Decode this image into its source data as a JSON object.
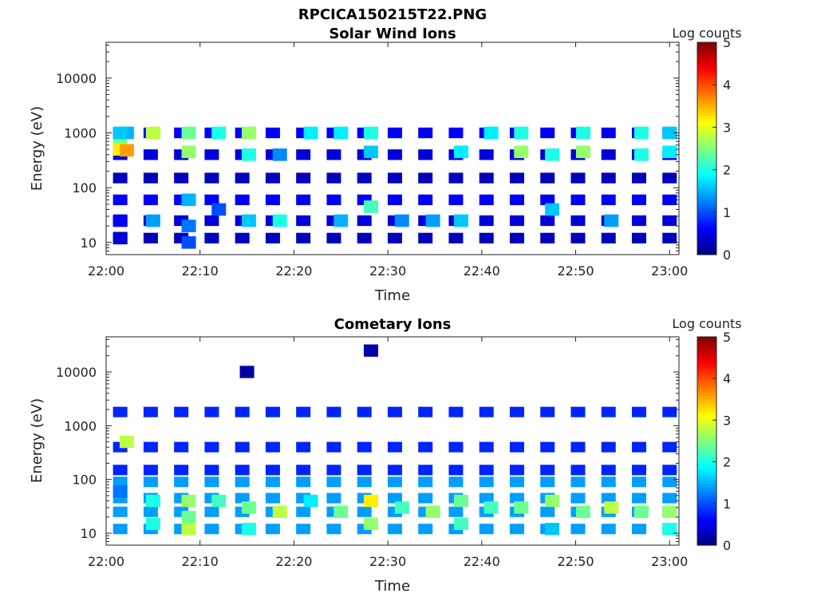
{
  "figure_title": "RPCICA150215T22.PNG",
  "chart_data": [
    {
      "type": "heatmap",
      "title": "Solar Wind Ions",
      "xlabel": "Time",
      "ylabel": "Energy (eV)",
      "yscale": "log",
      "xlim": [
        "22:00",
        "23:01"
      ],
      "ylim": [
        6,
        45000
      ],
      "x_ticks": [
        "22:00",
        "22:10",
        "22:20",
        "22:30",
        "22:40",
        "22:50",
        "23:00"
      ],
      "y_ticks": [
        "10",
        "100",
        "1000",
        "10000"
      ],
      "colorbar": {
        "label": "Log counts",
        "range": [
          0,
          5
        ],
        "ticks": [
          "0",
          "1",
          "2",
          "3",
          "4",
          "5"
        ],
        "colormap": "jet"
      },
      "cells": [
        {
          "t": 1.5,
          "E": 700,
          "v": 2.4
        },
        {
          "t": 1.5,
          "E": 500,
          "v": 3.2
        },
        {
          "t": 2.2,
          "E": 480,
          "v": 3.6
        },
        {
          "t": 2.2,
          "E": 1000,
          "v": 1.5
        },
        {
          "t": 1.5,
          "E": 1000,
          "v": 1.6
        },
        {
          "t": 1.5,
          "E": 25,
          "v": 0.6
        },
        {
          "t": 1.5,
          "E": 12,
          "v": 0.4
        },
        {
          "t": 5.0,
          "E": 1000,
          "v": 2.8
        },
        {
          "t": 5.0,
          "E": 25,
          "v": 1.4
        },
        {
          "t": 8.8,
          "E": 1000,
          "v": 2.4
        },
        {
          "t": 8.8,
          "E": 450,
          "v": 2.6
        },
        {
          "t": 8.8,
          "E": 60,
          "v": 1.5
        },
        {
          "t": 8.8,
          "E": 20,
          "v": 1.2
        },
        {
          "t": 8.8,
          "E": 10,
          "v": 1.0
        },
        {
          "t": 12.0,
          "E": 1000,
          "v": 2.0
        },
        {
          "t": 12.0,
          "E": 40,
          "v": 1.0
        },
        {
          "t": 15.2,
          "E": 1000,
          "v": 2.6
        },
        {
          "t": 15.2,
          "E": 400,
          "v": 2.0
        },
        {
          "t": 15.2,
          "E": 25,
          "v": 1.6
        },
        {
          "t": 18.5,
          "E": 25,
          "v": 2.0
        },
        {
          "t": 18.5,
          "E": 400,
          "v": 1.3
        },
        {
          "t": 21.8,
          "E": 1000,
          "v": 1.8
        },
        {
          "t": 25.0,
          "E": 1000,
          "v": 1.8
        },
        {
          "t": 25.0,
          "E": 25,
          "v": 1.5
        },
        {
          "t": 28.2,
          "E": 1000,
          "v": 2.0
        },
        {
          "t": 28.2,
          "E": 45,
          "v": 2.2
        },
        {
          "t": 28.2,
          "E": 450,
          "v": 1.6
        },
        {
          "t": 31.5,
          "E": 25,
          "v": 1.3
        },
        {
          "t": 34.8,
          "E": 25,
          "v": 1.4
        },
        {
          "t": 37.8,
          "E": 450,
          "v": 1.8
        },
        {
          "t": 37.8,
          "E": 25,
          "v": 1.6
        },
        {
          "t": 41.0,
          "E": 1000,
          "v": 1.8
        },
        {
          "t": 44.2,
          "E": 450,
          "v": 2.6
        },
        {
          "t": 44.2,
          "E": 1000,
          "v": 2.0
        },
        {
          "t": 47.5,
          "E": 400,
          "v": 2.0
        },
        {
          "t": 47.5,
          "E": 40,
          "v": 1.6
        },
        {
          "t": 50.8,
          "E": 450,
          "v": 2.6
        },
        {
          "t": 50.8,
          "E": 1000,
          "v": 2.0
        },
        {
          "t": 53.8,
          "E": 25,
          "v": 1.4
        },
        {
          "t": 57.0,
          "E": 1000,
          "v": 2.0
        },
        {
          "t": 57.0,
          "E": 400,
          "v": 2.0
        },
        {
          "t": 60.0,
          "E": 450,
          "v": 1.8
        },
        {
          "t": 60.0,
          "E": 1000,
          "v": 1.6
        }
      ]
    },
    {
      "type": "heatmap",
      "title": "Cometary Ions",
      "xlabel": "Time",
      "ylabel": "Energy (eV)",
      "yscale": "log",
      "xlim": [
        "22:00",
        "23:01"
      ],
      "ylim": [
        6,
        45000
      ],
      "x_ticks": [
        "22:00",
        "22:10",
        "22:20",
        "22:30",
        "22:40",
        "22:50",
        "23:00"
      ],
      "y_ticks": [
        "10",
        "100",
        "1000",
        "10000"
      ],
      "colorbar": {
        "label": "Log counts",
        "range": [
          0,
          5
        ],
        "ticks": [
          "0",
          "1",
          "2",
          "3",
          "4",
          "5"
        ],
        "colormap": "jet"
      },
      "cells": [
        {
          "t": 2.2,
          "E": 500,
          "v": 2.8
        },
        {
          "t": 1.5,
          "E": 60,
          "v": 1.2
        },
        {
          "t": 5.0,
          "E": 40,
          "v": 2.0
        },
        {
          "t": 5.0,
          "E": 15,
          "v": 2.0
        },
        {
          "t": 8.8,
          "E": 40,
          "v": 2.6
        },
        {
          "t": 8.8,
          "E": 20,
          "v": 2.4
        },
        {
          "t": 8.8,
          "E": 12,
          "v": 2.8
        },
        {
          "t": 12.0,
          "E": 40,
          "v": 2.2
        },
        {
          "t": 15.2,
          "E": 30,
          "v": 2.4
        },
        {
          "t": 15.2,
          "E": 12,
          "v": 2.0
        },
        {
          "t": 18.5,
          "E": 25,
          "v": 2.8
        },
        {
          "t": 21.8,
          "E": 40,
          "v": 1.8
        },
        {
          "t": 25.0,
          "E": 25,
          "v": 2.4
        },
        {
          "t": 28.2,
          "E": 40,
          "v": 3.2
        },
        {
          "t": 28.2,
          "E": 15,
          "v": 2.6
        },
        {
          "t": 31.5,
          "E": 30,
          "v": 2.2
        },
        {
          "t": 34.8,
          "E": 25,
          "v": 2.6
        },
        {
          "t": 37.8,
          "E": 40,
          "v": 2.4
        },
        {
          "t": 37.8,
          "E": 15,
          "v": 2.2
        },
        {
          "t": 41.0,
          "E": 30,
          "v": 2.2
        },
        {
          "t": 44.2,
          "E": 30,
          "v": 2.4
        },
        {
          "t": 47.5,
          "E": 40,
          "v": 2.6
        },
        {
          "t": 47.5,
          "E": 12,
          "v": 1.6
        },
        {
          "t": 50.8,
          "E": 25,
          "v": 2.4
        },
        {
          "t": 53.8,
          "E": 30,
          "v": 2.8
        },
        {
          "t": 57.0,
          "E": 25,
          "v": 2.4
        },
        {
          "t": 60.0,
          "E": 25,
          "v": 2.6
        },
        {
          "t": 60.0,
          "E": 12,
          "v": 2.0
        },
        {
          "t": 28.2,
          "E": 25000,
          "v": 0.2
        },
        {
          "t": 15.0,
          "E": 10000,
          "v": 0.2
        }
      ]
    }
  ]
}
